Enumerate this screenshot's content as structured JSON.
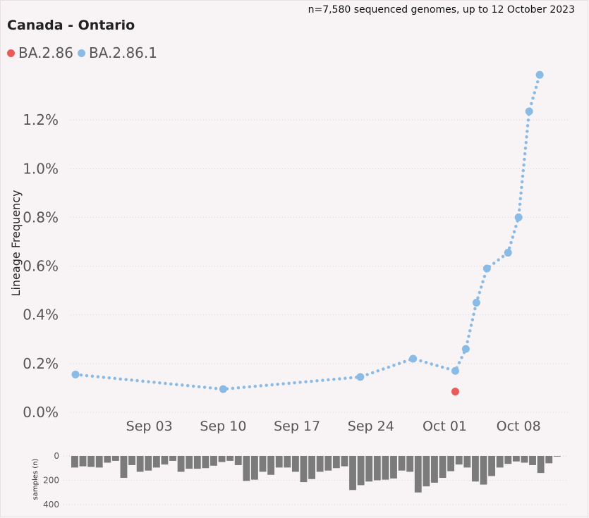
{
  "subtitle": "n=7,580 sequenced genomes, up to 12 October 2023",
  "title": "Canada - Ontario",
  "legend": [
    {
      "label": "BA.2.86",
      "color": "#ea5a56"
    },
    {
      "label": "BA.2.86.1",
      "color": "#89bbe6"
    }
  ],
  "chart_data": [
    {
      "type": "line",
      "ylabel": "Lineage Frequency",
      "ylim": [
        0,
        1.4
      ],
      "yticks": [
        0,
        0.2,
        0.4,
        0.6,
        0.8,
        1.0,
        1.2
      ],
      "ytick_labels": [
        "0.0%",
        "0.2%",
        "0.4%",
        "0.6%",
        "0.8%",
        "1.0%",
        "1.2%"
      ],
      "xlim": [
        "2023-08-27",
        "2023-10-12"
      ],
      "xticks": [
        "2023-09-03",
        "2023-09-10",
        "2023-09-17",
        "2023-09-24",
        "2023-10-01",
        "2023-10-08"
      ],
      "xtick_labels": [
        "Sep 03",
        "Sep 10",
        "Sep 17",
        "Sep 24",
        "Oct 01",
        "Oct 08"
      ],
      "grid": true,
      "series": [
        {
          "name": "BA.2.86.1",
          "color": "#89bbe6",
          "x": [
            "2023-08-27",
            "2023-09-10",
            "2023-09-23",
            "2023-09-28",
            "2023-10-02",
            "2023-10-03",
            "2023-10-04",
            "2023-10-05",
            "2023-10-07",
            "2023-10-08",
            "2023-10-09",
            "2023-10-10"
          ],
          "y": [
            0.155,
            0.095,
            0.145,
            0.22,
            0.17,
            0.26,
            0.45,
            0.59,
            0.655,
            0.8,
            1.235,
            1.385
          ]
        },
        {
          "name": "BA.2.86",
          "color": "#ea5a56",
          "x": [
            "2023-10-02"
          ],
          "y": [
            0.085
          ]
        }
      ]
    },
    {
      "type": "bar",
      "ylabel": "samples (n)",
      "ylim": [
        0,
        400
      ],
      "yticks": [
        0,
        200,
        400
      ],
      "ytick_labels": [
        "0",
        "200",
        "400"
      ],
      "grid": true,
      "x_start": "2023-08-27",
      "values": [
        95,
        85,
        90,
        95,
        55,
        40,
        180,
        75,
        130,
        120,
        95,
        70,
        40,
        130,
        105,
        105,
        100,
        80,
        50,
        40,
        75,
        205,
        195,
        130,
        155,
        95,
        95,
        130,
        215,
        190,
        130,
        120,
        100,
        85,
        280,
        240,
        210,
        200,
        195,
        185,
        120,
        130,
        300,
        250,
        220,
        180,
        125,
        70,
        95,
        210,
        235,
        165,
        95,
        65,
        45,
        55,
        75,
        140,
        60,
        5
      ]
    }
  ]
}
